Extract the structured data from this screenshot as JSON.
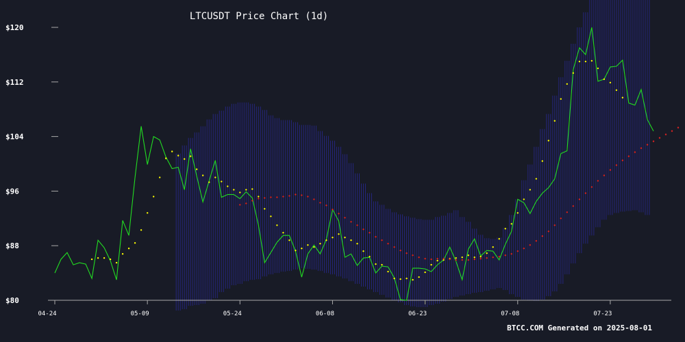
{
  "chart_data": {
    "type": "line",
    "title": "LTCUSDT Price Chart (1d)",
    "xlabel": "",
    "ylabel": "",
    "footer": "BTCC.COM Generated on 2025-08-01",
    "ylim": [
      80,
      120
    ],
    "yticks": [
      80,
      88,
      96,
      104,
      112,
      120
    ],
    "ytick_labels": [
      "$80",
      "$88",
      "$96",
      "$104",
      "$112",
      "$120"
    ],
    "xlim_days": [
      0,
      99
    ],
    "xticks": [
      0,
      15,
      30,
      45,
      60,
      75,
      90
    ],
    "xtick_labels": [
      "04-24",
      "05-09",
      "05-24",
      "06-08",
      "06-23",
      "07-08",
      "07-23"
    ],
    "grid": false,
    "colors": {
      "background": "#181b26",
      "price": "#22dd22",
      "fast_ma": "#ffff00",
      "slow_ma": "#dd2222",
      "band": "#2a2a9a",
      "text": "#ffffff",
      "axis": "#aaaaaa"
    },
    "series": [
      {
        "style": "line",
        "values": [
          84,
          86,
          87,
          85.2,
          85.5,
          85.3,
          83.2,
          88.8,
          87.7,
          85.8,
          83,
          91.7,
          89.5,
          98,
          105.5,
          99.9,
          104,
          103.5,
          101,
          99.3,
          99.5,
          96.2,
          102.2,
          98.2,
          94.4,
          97.5,
          100.5,
          95.1,
          95.5,
          95.5,
          94.9,
          95.9,
          95,
          91,
          85.5,
          87,
          88.5,
          89.5,
          89.5,
          87.2,
          83.4,
          86.8,
          88.1,
          86.8,
          88.9,
          93.3,
          91.6,
          86.3,
          86.8,
          85.1,
          86.2,
          86.3,
          84,
          85,
          84.9,
          83.3,
          80.1,
          80,
          84.7,
          84.7,
          84.6,
          84.2,
          85.2,
          85.9,
          87.8,
          85.7,
          83,
          87.5,
          89,
          86.5,
          87.3,
          87.2,
          85.9,
          88.2,
          90.1,
          94.8,
          94.3,
          92.7,
          94.5,
          95.7,
          96.5,
          97.8,
          101.5,
          101.9,
          113.8,
          117,
          116,
          120,
          112.1,
          112.4,
          114.2,
          114.3,
          115.2,
          108.9,
          108.6,
          110.9,
          106.5,
          104.8
        ]
      },
      {
        "style": "dots",
        "start_index": 6,
        "values": [
          86,
          86.2,
          86.2,
          86,
          85.5,
          86.8,
          87.6,
          88.4,
          90.3,
          92.8,
          95.2,
          98,
          100.8,
          101.8,
          101.2,
          100.7,
          101.1,
          99.2,
          98.3,
          97.3,
          98,
          97.4,
          96.7,
          96.2,
          95.8,
          96.2,
          96.3,
          95.2,
          93.4,
          92.3,
          91,
          89.9,
          88.8,
          87.3,
          87.6,
          88.1,
          87.8,
          88.3,
          88.8,
          89.2,
          89.7,
          89.2,
          88.8,
          88.3,
          87.2,
          86.4,
          85.3,
          85.2,
          84.2,
          83.2,
          83.1,
          83.2,
          83,
          83.4,
          84.1,
          85.2,
          85.8,
          85.9,
          86.1,
          86.2,
          86.3,
          86.6,
          86.3,
          86.4,
          86.9,
          87.8,
          89,
          90.5,
          91.2,
          92.8,
          94.8,
          96.2,
          97.8,
          100.4,
          103.4,
          106.3,
          109.5,
          111.7,
          113.3,
          115,
          115,
          115.1,
          114,
          112.4,
          111.9,
          110.8,
          109.7
        ]
      },
      {
        "style": "dots",
        "start_index": 30,
        "values": [
          94,
          94.2,
          94.6,
          94.9,
          95,
          95.1,
          95.1,
          95.2,
          95.3,
          95.5,
          95.4,
          95.2,
          94.8,
          94.3,
          93.9,
          93.3,
          92.7,
          92.1,
          91.5,
          91,
          90.4,
          89.9,
          89.3,
          88.8,
          88.3,
          87.8,
          87.3,
          86.9,
          86.6,
          86.3,
          86.1,
          86,
          86.1,
          86.1,
          86,
          85.9,
          85.9,
          85.9,
          86,
          86.1,
          86.2,
          86.3,
          86.4,
          86.6,
          86.8,
          87.2,
          87.6,
          88.1,
          88.7,
          89.4,
          90.1,
          91,
          92,
          92.9,
          93.8,
          94.8,
          95.7,
          96.6,
          97.5,
          98.3,
          99.1,
          99.8,
          100.5,
          101.1,
          101.7,
          102.3,
          102.8,
          103.3,
          103.8,
          104.3,
          104.8,
          105.3
        ]
      }
    ],
    "band": {
      "start_index": 20,
      "upper": [
        101.5,
        102.7,
        103.8,
        104.6,
        105.5,
        106.5,
        107.3,
        107.8,
        108.4,
        108.8,
        109,
        109,
        108.8,
        108.4,
        107.9,
        107.1,
        106.7,
        106.4,
        106.4,
        106.1,
        105.7,
        105.7,
        105.6,
        104.8,
        104.1,
        103.4,
        102.5,
        101.4,
        100.1,
        98.6,
        97.1,
        95.7,
        94.5,
        94,
        93.4,
        92.9,
        92.6,
        92.3,
        92.1,
        91.9,
        91.8,
        91.8,
        92.2,
        92.4,
        92.8,
        93.2,
        92.2,
        91.5,
        90.5,
        89.6,
        89.1,
        89,
        89.2,
        90.6,
        92.5,
        94.8,
        97.6,
        99.9,
        102.5,
        105.1,
        107.3,
        110,
        112.7,
        115.1,
        117.6,
        120,
        122.2,
        124.1,
        126.4,
        128.6,
        130.1,
        130.8,
        131.2,
        131.5,
        131.8,
        131.4,
        131
      ],
      "lower": [
        78.5,
        78.7,
        79.2,
        79.3,
        79.5,
        80,
        80.3,
        81.2,
        81.7,
        82.2,
        82.4,
        82.8,
        83,
        83.1,
        83.5,
        83.8,
        84,
        84.2,
        84.3,
        84.5,
        84.7,
        84.6,
        84.5,
        84.3,
        84,
        83.8,
        83.5,
        83.2,
        82.8,
        82.4,
        82,
        81.6,
        81.2,
        80.8,
        80.4,
        80,
        79.7,
        79.3,
        79.1,
        79,
        79,
        79.3,
        79.5,
        79.8,
        80.2,
        80.5,
        80.7,
        80.9,
        81.1,
        81.2,
        81.4,
        81.6,
        81.8,
        81.5,
        80.9,
        80.5,
        80.1,
        80,
        79.9,
        80.1,
        80.6,
        81.3,
        82.4,
        83.8,
        85.4,
        86.9,
        88.3,
        89.5,
        90.7,
        91.8,
        92.5,
        92.8,
        93,
        93.1,
        93.2,
        92.9,
        92.5
      ]
    }
  }
}
